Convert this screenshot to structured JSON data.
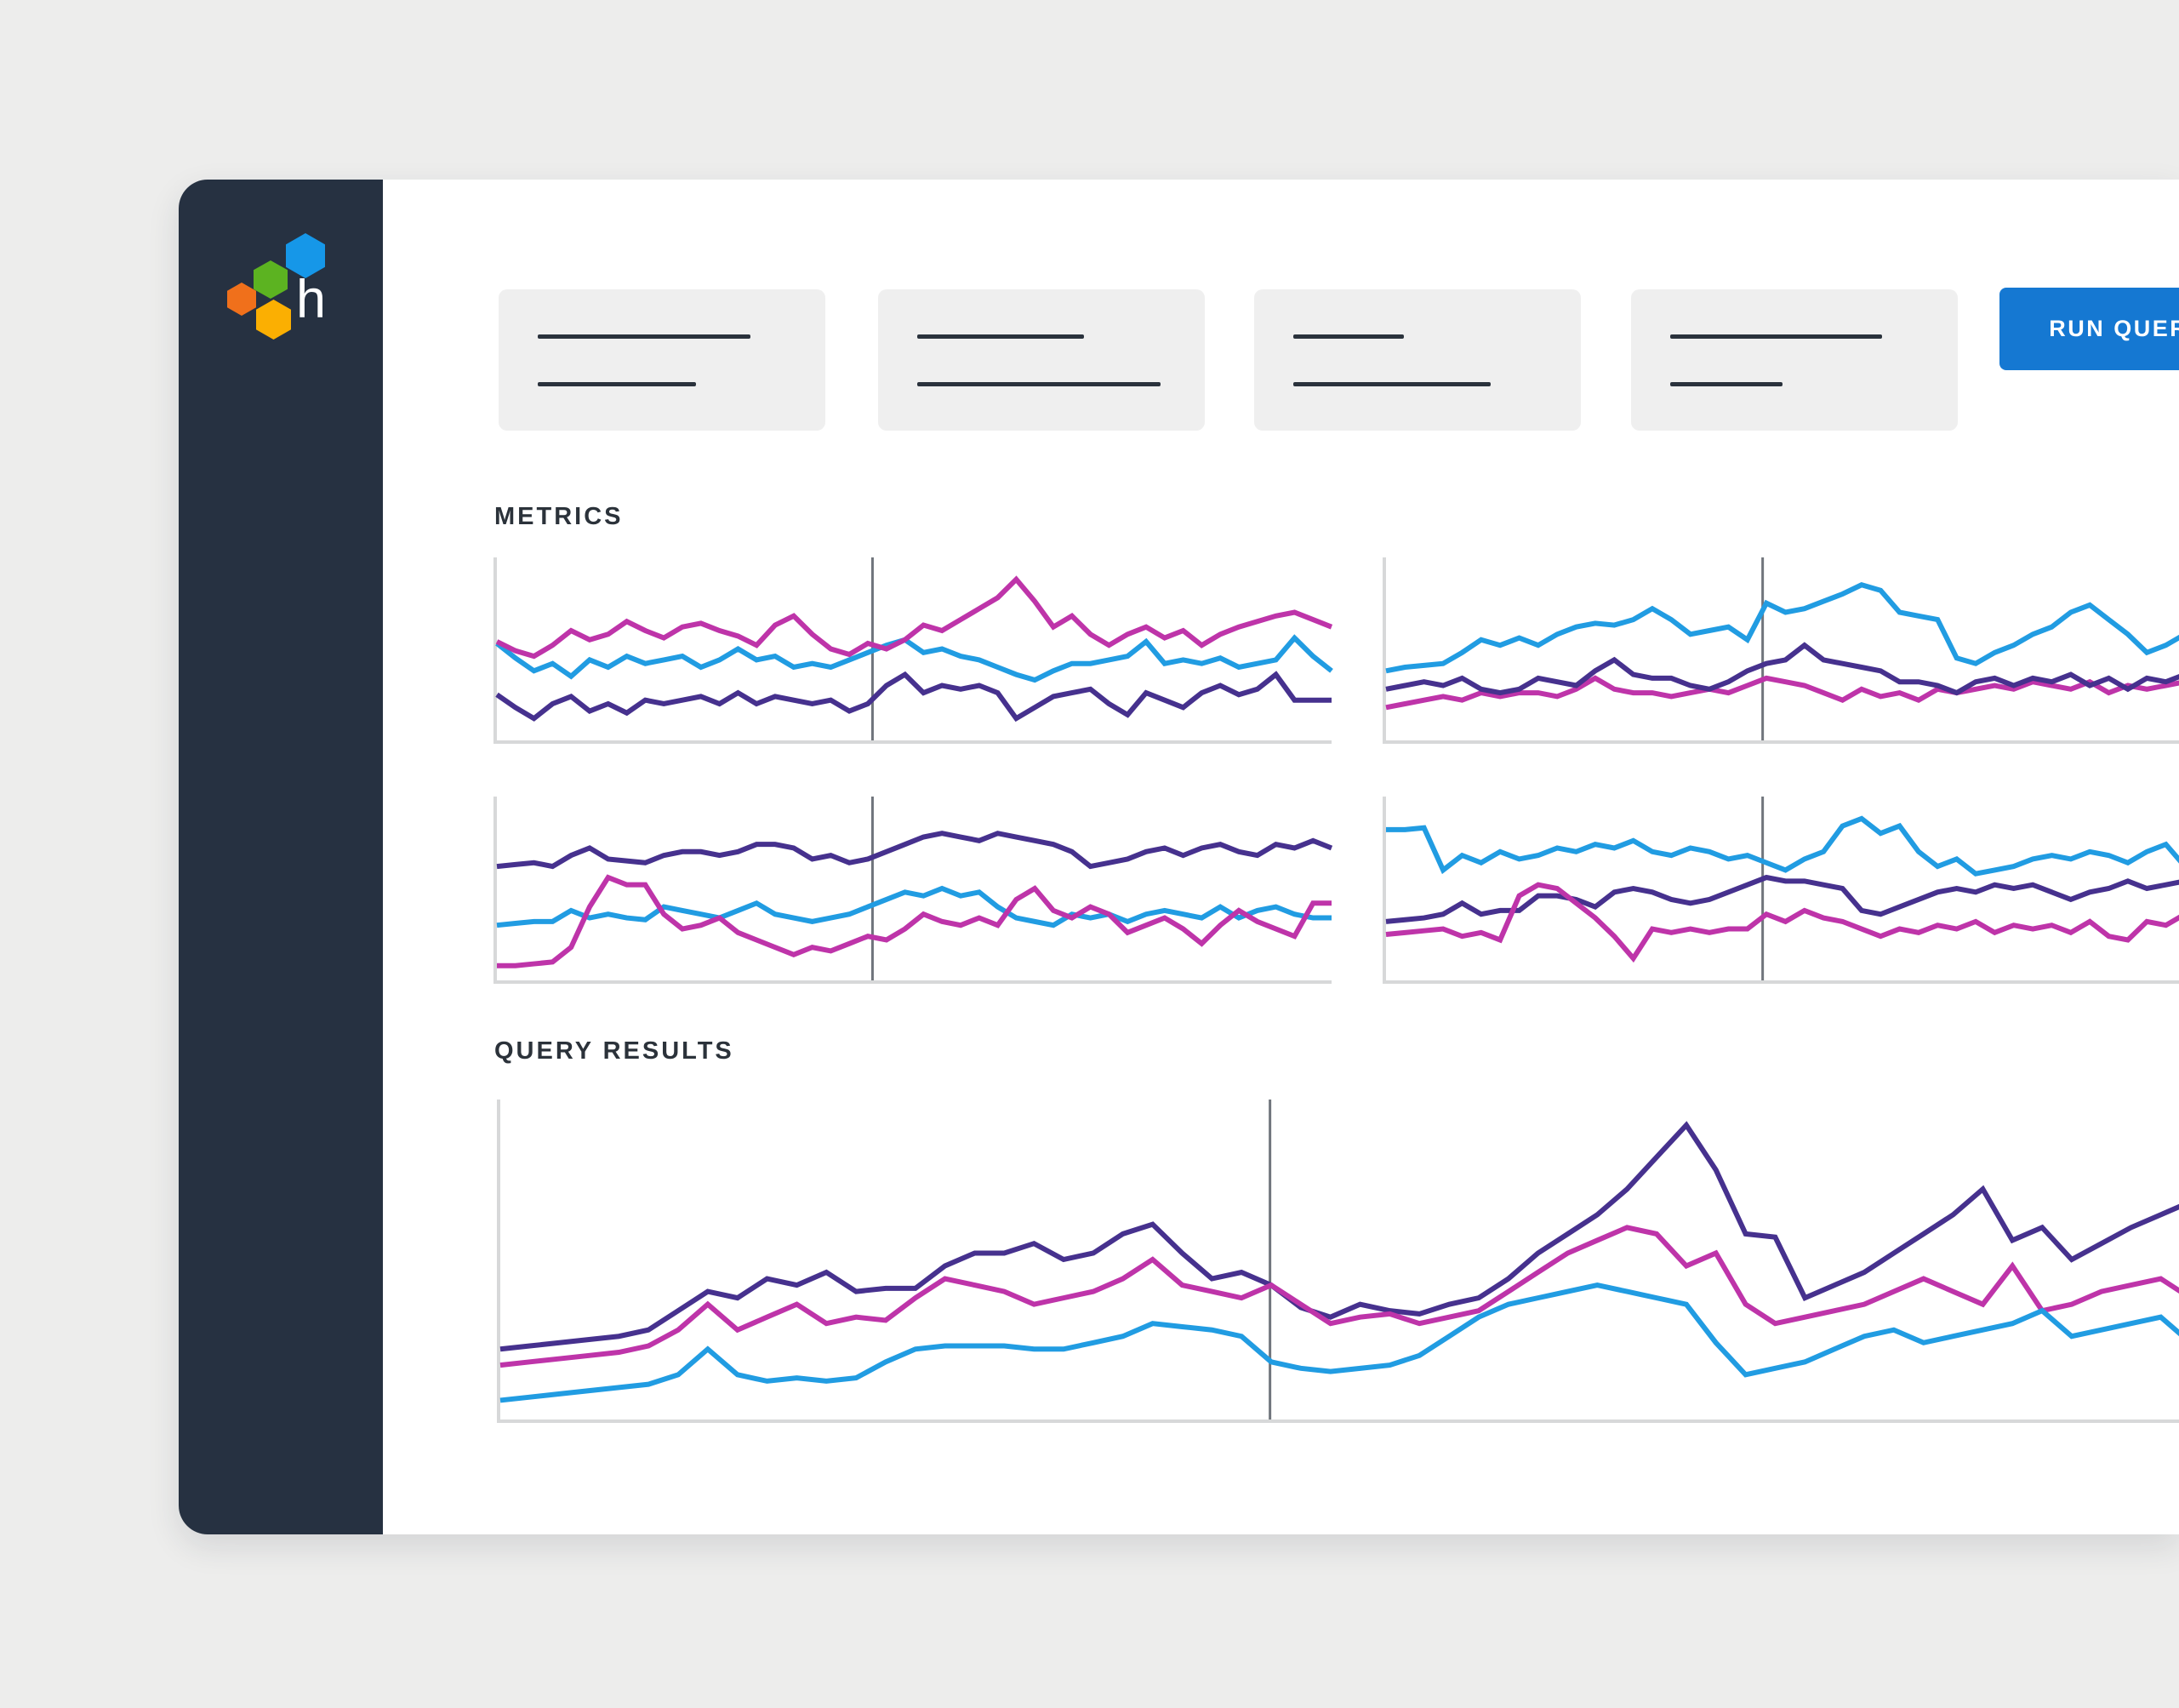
{
  "brand": {
    "logo_letter": "h",
    "hex_blue": "#1697e8",
    "hex_green": "#5cb321",
    "hex_orange": "#f0701b",
    "hex_yellow": "#fbaf02"
  },
  "colors": {
    "page_bg": "#ededec",
    "card_bg": "#ffffff",
    "sidebar_navy": "#263141",
    "placeholder_box_bg": "#efefef",
    "placeholder_line": "#2a323c",
    "accent_blue": "#1578d2",
    "title_text": "#2b323a",
    "axis_gray": "#d7d8d9",
    "marker_gray": "#70757c",
    "series_blue": "#219ce2",
    "series_magenta": "#be34a9",
    "series_purple": "#46318e"
  },
  "toolbar": {
    "run_query_label": "RUN QUERY",
    "boxes": [
      {
        "line_widths": [
          250,
          186
        ]
      },
      {
        "line_widths": [
          196,
          286
        ]
      },
      {
        "line_widths": [
          130,
          232
        ]
      },
      {
        "line_widths": [
          249,
          132
        ]
      }
    ]
  },
  "sections": {
    "metrics_label": "METRICS",
    "query_results_label": "QUERY RESULTS"
  },
  "chart_data": [
    {
      "id": "metrics-top-left",
      "type": "line",
      "title": "",
      "xlabel": "time (unlabeled)",
      "ylabel": "unlabeled",
      "x_range_pct": [
        0,
        100
      ],
      "y_range_pct": [
        0,
        100
      ],
      "grid": false,
      "legend": "none",
      "marker_x_pct": 45,
      "stroke_width": 6,
      "series": [
        {
          "name": "purple",
          "color": "#46318e",
          "values": [
            25,
            18,
            12,
            20,
            24,
            16,
            20,
            15,
            22,
            20,
            22,
            24,
            20,
            26,
            20,
            24,
            22,
            20,
            22,
            16,
            20,
            30,
            36,
            26,
            30,
            28,
            30,
            26,
            12,
            18,
            24,
            26,
            28,
            20,
            14,
            26,
            22,
            18,
            26,
            30,
            25,
            28,
            36,
            22,
            22,
            22
          ]
        },
        {
          "name": "blue",
          "color": "#219ce2",
          "values": [
            53,
            45,
            38,
            42,
            35,
            44,
            40,
            46,
            42,
            44,
            46,
            40,
            44,
            50,
            44,
            46,
            40,
            42,
            40,
            44,
            48,
            52,
            55,
            48,
            50,
            46,
            44,
            40,
            36,
            33,
            38,
            42,
            42,
            44,
            46,
            54,
            42,
            44,
            42,
            45,
            40,
            42,
            44,
            56,
            46,
            38
          ]
        },
        {
          "name": "magenta",
          "color": "#be34a9",
          "values": [
            54,
            49,
            46,
            52,
            60,
            55,
            58,
            65,
            60,
            56,
            62,
            64,
            60,
            57,
            52,
            63,
            68,
            58,
            50,
            47,
            53,
            50,
            55,
            63,
            60,
            66,
            72,
            78,
            88,
            76,
            62,
            68,
            58,
            52,
            58,
            62,
            56,
            60,
            52,
            58,
            62,
            65,
            68,
            70,
            66,
            62
          ]
        }
      ]
    },
    {
      "id": "metrics-top-right",
      "type": "line",
      "title": "",
      "xlabel": "time (unlabeled)",
      "ylabel": "unlabeled",
      "x_range_pct": [
        0,
        100
      ],
      "y_range_pct": [
        0,
        100
      ],
      "grid": false,
      "legend": "none",
      "marker_x_pct": 44,
      "stroke_width": 6,
      "series": [
        {
          "name": "magenta",
          "color": "#be34a9",
          "values": [
            18,
            20,
            22,
            24,
            22,
            26,
            24,
            26,
            26,
            24,
            28,
            34,
            28,
            26,
            26,
            24,
            26,
            28,
            26,
            30,
            34,
            32,
            30,
            26,
            22,
            28,
            24,
            26,
            22,
            28,
            26,
            28,
            30,
            28,
            32,
            30,
            28,
            32,
            26,
            30,
            28,
            30,
            32,
            34,
            30,
            28
          ]
        },
        {
          "name": "purple",
          "color": "#46318e",
          "values": [
            28,
            30,
            32,
            30,
            34,
            28,
            26,
            28,
            34,
            32,
            30,
            38,
            44,
            36,
            34,
            34,
            30,
            28,
            32,
            38,
            42,
            44,
            52,
            44,
            42,
            40,
            38,
            32,
            32,
            30,
            26,
            32,
            34,
            30,
            34,
            32,
            36,
            30,
            34,
            28,
            34,
            32,
            36,
            34,
            36,
            38
          ]
        },
        {
          "name": "blue",
          "color": "#219ce2",
          "values": [
            38,
            40,
            41,
            42,
            48,
            55,
            52,
            56,
            52,
            58,
            62,
            64,
            63,
            66,
            72,
            66,
            58,
            60,
            62,
            55,
            75,
            70,
            72,
            76,
            80,
            85,
            82,
            70,
            68,
            66,
            45,
            42,
            48,
            52,
            58,
            62,
            70,
            74,
            66,
            58,
            48,
            52,
            58,
            64,
            70,
            68
          ]
        }
      ]
    },
    {
      "id": "metrics-bottom-left",
      "type": "line",
      "title": "",
      "xlabel": "time (unlabeled)",
      "ylabel": "unlabeled",
      "x_range_pct": [
        0,
        100
      ],
      "y_range_pct": [
        0,
        100
      ],
      "grid": false,
      "legend": "none",
      "marker_x_pct": 45,
      "stroke_width": 6,
      "series": [
        {
          "name": "purple",
          "color": "#46318e",
          "values": [
            62,
            63,
            64,
            62,
            68,
            72,
            66,
            65,
            64,
            68,
            70,
            70,
            68,
            70,
            74,
            74,
            72,
            66,
            68,
            64,
            66,
            70,
            74,
            78,
            80,
            78,
            76,
            80,
            78,
            76,
            74,
            70,
            62,
            64,
            66,
            70,
            72,
            68,
            72,
            74,
            70,
            68,
            74,
            72,
            76,
            72
          ]
        },
        {
          "name": "blue",
          "color": "#219ce2",
          "values": [
            30,
            31,
            32,
            32,
            38,
            34,
            36,
            34,
            33,
            40,
            38,
            36,
            34,
            38,
            42,
            36,
            34,
            32,
            34,
            36,
            40,
            44,
            48,
            46,
            50,
            46,
            48,
            40,
            34,
            32,
            30,
            36,
            34,
            36,
            32,
            36,
            38,
            36,
            34,
            40,
            34,
            38,
            40,
            36,
            34,
            34
          ]
        },
        {
          "name": "magenta",
          "color": "#be34a9",
          "values": [
            8,
            8,
            9,
            10,
            18,
            40,
            56,
            52,
            52,
            36,
            28,
            30,
            34,
            26,
            22,
            18,
            14,
            18,
            16,
            20,
            24,
            22,
            28,
            36,
            32,
            30,
            34,
            30,
            44,
            50,
            38,
            34,
            40,
            36,
            26,
            30,
            34,
            28,
            20,
            30,
            38,
            32,
            28,
            24,
            42,
            42
          ]
        }
      ]
    },
    {
      "id": "metrics-bottom-right",
      "type": "line",
      "title": "",
      "xlabel": "time (unlabeled)",
      "ylabel": "unlabeled",
      "x_range_pct": [
        0,
        100
      ],
      "y_range_pct": [
        0,
        100
      ],
      "grid": false,
      "legend": "none",
      "marker_x_pct": 44,
      "stroke_width": 6,
      "series": [
        {
          "name": "purple",
          "color": "#46318e",
          "values": [
            32,
            33,
            34,
            36,
            42,
            36,
            38,
            38,
            46,
            46,
            44,
            40,
            48,
            50,
            48,
            44,
            42,
            44,
            48,
            52,
            56,
            54,
            54,
            52,
            50,
            38,
            36,
            40,
            44,
            48,
            50,
            48,
            52,
            50,
            52,
            48,
            44,
            48,
            50,
            54,
            50,
            52,
            54,
            56,
            52,
            54
          ]
        },
        {
          "name": "magenta",
          "color": "#be34a9",
          "values": [
            25,
            26,
            27,
            28,
            24,
            26,
            22,
            46,
            52,
            50,
            42,
            34,
            24,
            12,
            28,
            26,
            28,
            26,
            28,
            28,
            36,
            32,
            38,
            34,
            32,
            28,
            24,
            28,
            26,
            30,
            28,
            32,
            26,
            30,
            28,
            30,
            26,
            32,
            24,
            22,
            32,
            30,
            36,
            42,
            40,
            38
          ]
        },
        {
          "name": "blue",
          "color": "#219ce2",
          "values": [
            82,
            82,
            83,
            60,
            68,
            64,
            70,
            66,
            68,
            72,
            70,
            74,
            72,
            76,
            70,
            68,
            72,
            70,
            66,
            68,
            64,
            60,
            66,
            70,
            84,
            88,
            80,
            84,
            70,
            62,
            66,
            58,
            60,
            62,
            66,
            68,
            66,
            70,
            68,
            64,
            70,
            74,
            62,
            66,
            72,
            68
          ]
        }
      ]
    },
    {
      "id": "query-results",
      "type": "line",
      "title": "",
      "xlabel": "time (unlabeled)",
      "ylabel": "unlabeled",
      "x_range_pct": [
        0,
        100
      ],
      "y_range_pct": [
        0,
        100
      ],
      "grid": false,
      "legend": "none",
      "marker_x_pct": 44,
      "stroke_width": 6,
      "series": [
        {
          "name": "purple",
          "color": "#46318e",
          "values": [
            22,
            23,
            24,
            25,
            26,
            28,
            34,
            40,
            38,
            44,
            42,
            46,
            40,
            41,
            41,
            48,
            52,
            52,
            55,
            50,
            52,
            58,
            61,
            52,
            44,
            46,
            42,
            35,
            32,
            36,
            34,
            33,
            36,
            38,
            44,
            52,
            58,
            64,
            72,
            82,
            92,
            78,
            58,
            57,
            38,
            42,
            46,
            52,
            58,
            64,
            72,
            56,
            60,
            50,
            55,
            60,
            64,
            68,
            56,
            60
          ]
        },
        {
          "name": "magenta",
          "color": "#be34a9",
          "values": [
            17,
            18,
            19,
            20,
            21,
            23,
            28,
            36,
            28,
            32,
            36,
            30,
            32,
            31,
            38,
            44,
            42,
            40,
            36,
            38,
            40,
            44,
            50,
            42,
            40,
            38,
            42,
            36,
            30,
            32,
            33,
            30,
            32,
            34,
            40,
            46,
            52,
            56,
            60,
            58,
            48,
            52,
            36,
            30,
            32,
            34,
            36,
            40,
            44,
            40,
            36,
            48,
            34,
            36,
            40,
            42,
            44,
            38,
            40,
            32
          ]
        },
        {
          "name": "blue",
          "color": "#219ce2",
          "values": [
            6,
            7,
            8,
            9,
            10,
            11,
            14,
            22,
            14,
            12,
            13,
            12,
            13,
            18,
            22,
            23,
            23,
            23,
            22,
            22,
            24,
            26,
            30,
            29,
            28,
            26,
            18,
            16,
            15,
            16,
            17,
            20,
            26,
            32,
            36,
            38,
            40,
            42,
            40,
            38,
            36,
            24,
            14,
            16,
            18,
            22,
            26,
            28,
            24,
            26,
            28,
            30,
            34,
            26,
            28,
            30,
            32,
            24,
            24,
            26
          ]
        }
      ]
    }
  ]
}
